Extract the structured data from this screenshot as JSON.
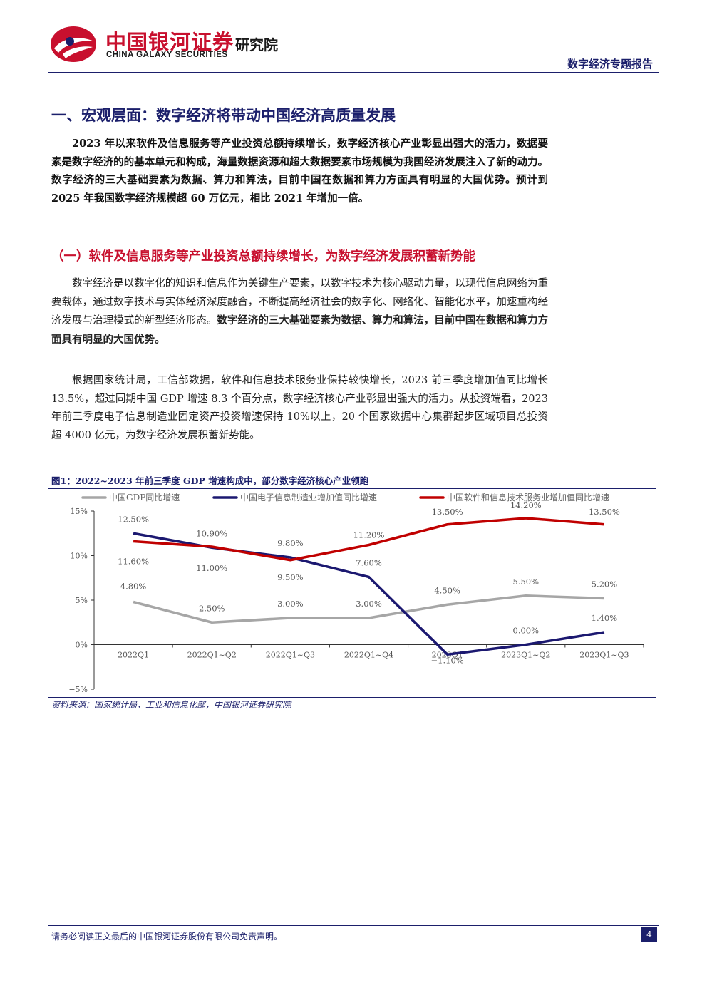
{
  "header": {
    "logo_cn": "中国银河证券",
    "logo_en": "CHINA GALAXY SECURITIES",
    "institute": "研究院",
    "report_type": "数字经济专题报告"
  },
  "section1": {
    "heading": "一、宏观层面：数字经济将带动中国经济高质量发展",
    "paragraph": "2023 年以来软件及信息服务等产业投资总额持续增长，数字经济核心产业彰显出强大的活力，数据要素是数字经济的的基本单元和构成，海量数据资源和超大数据要素市场规模为我国经济发展注入了新的动力。数字经济的三大基础要素为数据、算力和算法，目前中国在数据和算力方面具有明显的大国优势。预计到 2025 年我国数字经济规模超 60 万亿元，相比 2021 年增加一倍。"
  },
  "section2": {
    "heading": "（一）软件及信息服务等产业投资总额持续增长，为数字经济发展积蓄新势能",
    "para1_normal": "数字经济是以数字化的知识和信息作为关键生产要素，以数字技术为核心驱动力量，以现代信息网络为重要载体，通过数字技术与实体经济深度融合，不断提高经济社会的数字化、网络化、智能化水平，加速重构经济发展与治理模式的新型经济形态。",
    "para1_bold": "数字经济的三大基础要素为数据、算力和算法，目前中国在数据和算力方面具有明显的大国优势。",
    "para2": "根据国家统计局，工信部数据，软件和信息技术服务业保持较快增长，2023 前三季度增加值同比增长 13.5%，超过同期中国 GDP 增速 8.3 个百分点，数字经济核心产业彰显出强大的活力。从投资端看，2023 年前三季度电子信息制造业固定资产投资增速保持 10%以上，20 个国家数据中心集群起步区域项目总投资超 4000 亿元，为数字经济发展积蓄新势能。"
  },
  "figure": {
    "title": "图1：2022~2023 年前三季度 GDP 增速构成中，部分数字经济核心产业领跑",
    "source": "资料来源：国家统计局，工业和信息化部，中国银河证券研究院"
  },
  "chart_data": {
    "type": "line",
    "x": [
      "2022Q1",
      "2022Q1~Q2",
      "2022Q1~Q3",
      "2022Q1~Q4",
      "2023Q1",
      "2023Q1~Q2",
      "2023Q1~Q3"
    ],
    "ylim": [
      -5,
      15
    ],
    "yticks": [
      "−5%",
      "0%",
      "5%",
      "10%",
      "15%"
    ],
    "ytick_values": [
      -5,
      0,
      5,
      10,
      15
    ],
    "legend_position": "top",
    "series": [
      {
        "name": "中国GDP同比增速",
        "color": "#a6a6a6",
        "values": [
          4.8,
          2.5,
          3.0,
          3.0,
          4.5,
          5.5,
          5.2
        ],
        "labels": [
          "4.80%",
          "2.50%",
          "3.00%",
          "3.00%",
          "4.50%",
          "5.50%",
          "5.20%"
        ]
      },
      {
        "name": "中国电子信息制造业增加值同比增速",
        "color": "#1b1870",
        "values": [
          12.5,
          10.9,
          9.8,
          7.6,
          -1.1,
          0.0,
          1.4
        ],
        "labels": [
          "12.50%",
          "10.90%",
          "9.80%",
          "7.60%",
          "−1.10%",
          "0.00%",
          "1.40%"
        ]
      },
      {
        "name": "中国软件和信息技术服务业增加值同比增速",
        "color": "#c00000",
        "values": [
          11.6,
          11.0,
          9.5,
          11.2,
          13.5,
          14.2,
          13.5
        ],
        "labels": [
          "11.60%",
          "11.00%",
          "9.50%",
          "11.20%",
          "13.50%",
          "14.20%",
          "13.50%"
        ]
      }
    ]
  },
  "footer": {
    "disclaimer": "请务必阅读正文最后的中国银河证券股份有限公司免责声明。",
    "page": "4"
  }
}
